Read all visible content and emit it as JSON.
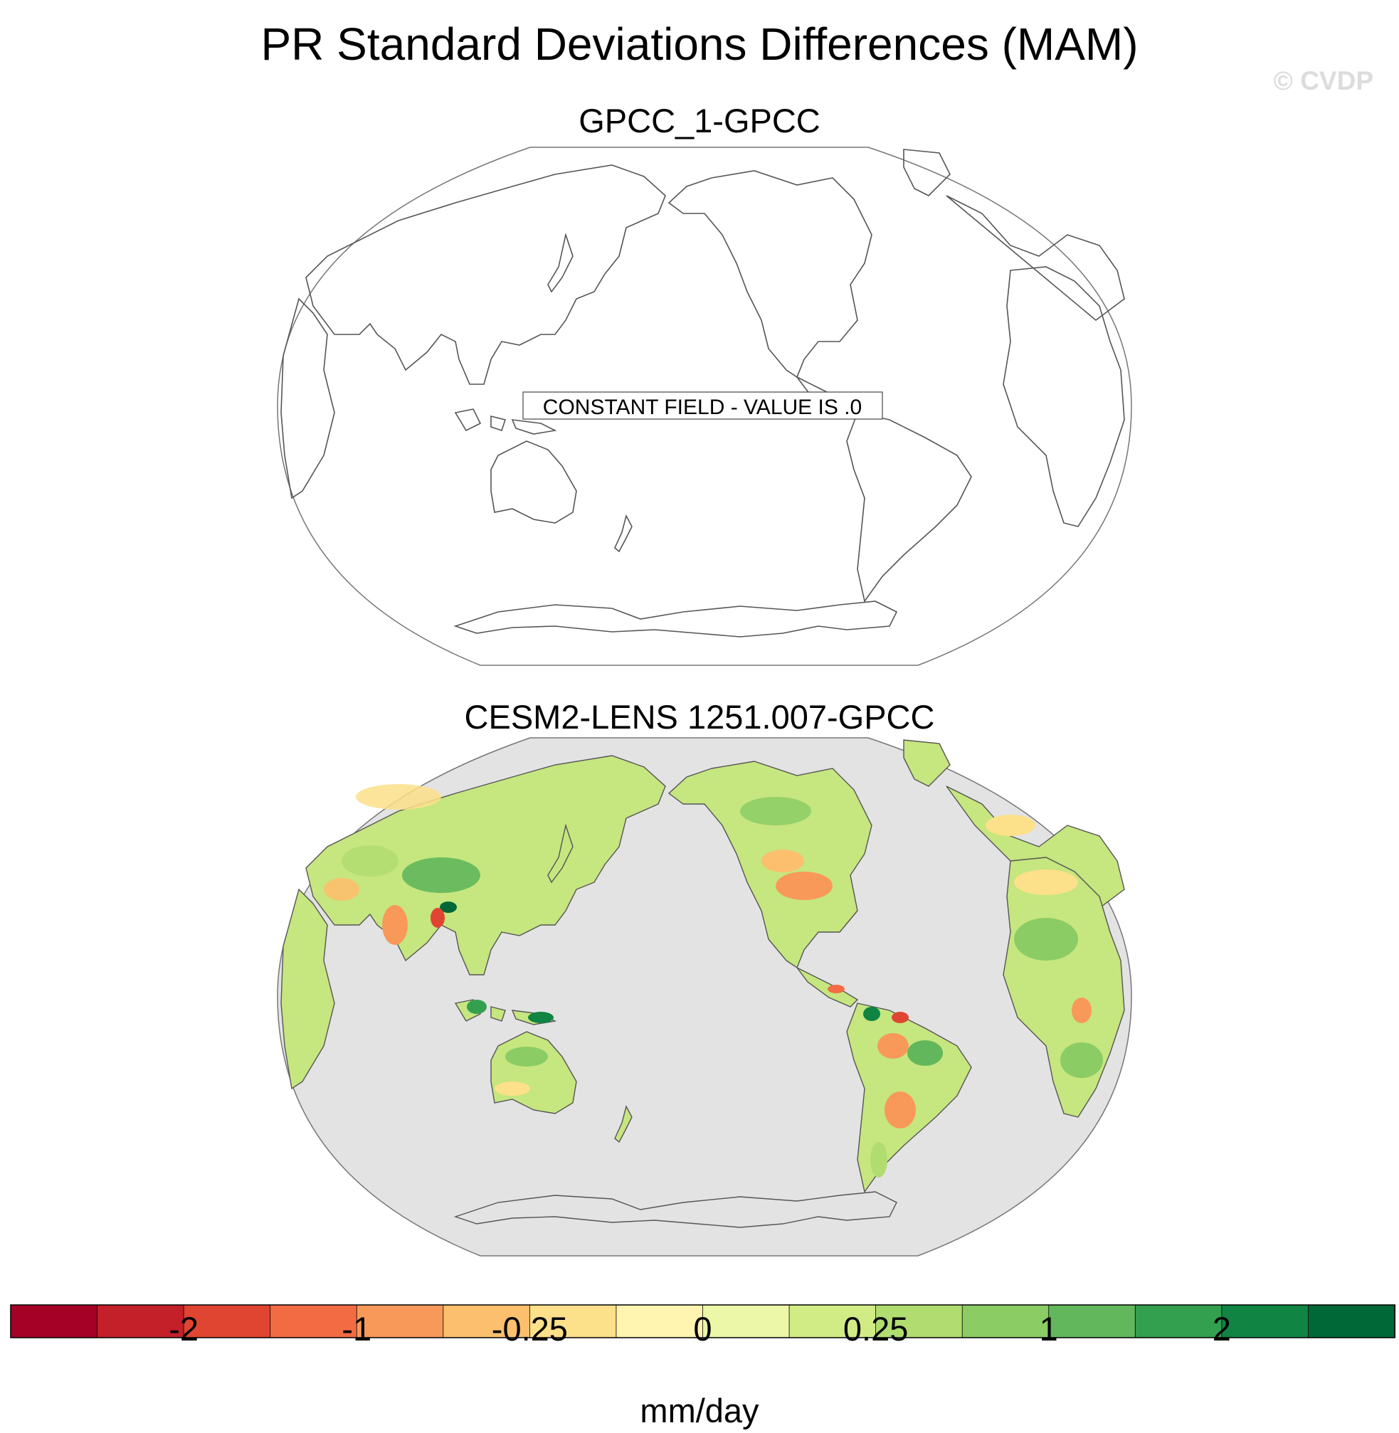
{
  "figure": {
    "title": "PR Standard Deviations Differences (MAM)",
    "watermark": "© CVDP"
  },
  "panels": [
    {
      "title": "GPCC_1-GPCC",
      "annotation": "CONSTANT FIELD - VALUE IS .0"
    },
    {
      "title": "CESM2-LENS 1251.007-GPCC"
    }
  ],
  "chart_data": {
    "type": "map",
    "projection": "Robinson (Pacific-centered)",
    "variable": "Precipitation standard deviation difference",
    "season": "MAM",
    "units": "mm/day",
    "colorbar": {
      "tick_labels": [
        "-2",
        "-1",
        "-0.25",
        "0",
        "0.25",
        "1",
        "2"
      ],
      "colors": [
        "#a50026",
        "#c4202a",
        "#e04531",
        "#f26b43",
        "#f8995a",
        "#fcbf6e",
        "#fce08a",
        "#fff5b0",
        "#ecf7a8",
        "#d2ec85",
        "#b1dd70",
        "#8bcc64",
        "#62b75c",
        "#33a04f",
        "#0f8443",
        "#006837"
      ]
    },
    "land_fill": "#c6e67f",
    "ocean_fill": "#e3e3e3"
  }
}
